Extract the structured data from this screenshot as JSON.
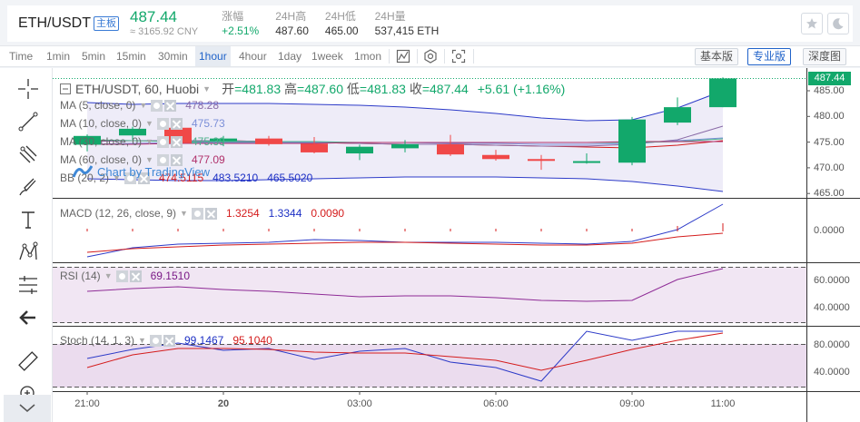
{
  "header": {
    "pair": "ETH/USDT",
    "badge": "主板",
    "price": "487.44",
    "price_cny": "≈ 3165.92 CNY",
    "stats": [
      {
        "label": "涨幅",
        "value": "+2.51%"
      },
      {
        "label": "24H高",
        "value": "487.60"
      },
      {
        "label": "24H低",
        "value": "465.00"
      },
      {
        "label": "24H量",
        "value": "537,415 ETH"
      }
    ],
    "icons": [
      "star-icon",
      "moon-icon"
    ]
  },
  "toolbar": {
    "intervals": [
      "Time",
      "1min",
      "5min",
      "15min",
      "30min",
      "1hour",
      "4hour",
      "1day",
      "1week",
      "1mon"
    ],
    "active_interval": "1hour",
    "icons": [
      "indicator-icon",
      "settings-icon",
      "screenshot-icon"
    ],
    "views": [
      "基本版",
      "专业版",
      "深度图"
    ],
    "active_view": "专业版"
  },
  "tools": [
    "crosshair-icon",
    "trendline-icon",
    "pitchfork-icon",
    "brush-icon",
    "text-icon",
    "pattern-icon",
    "fib-icon",
    "back-arrow-icon",
    "ruler-icon",
    "zoom-in-icon"
  ],
  "main": {
    "title": "ETH/USDT, 60, Huobi",
    "ohlc": {
      "open_label": "开",
      "open": "481.83",
      "high_label": "高",
      "high": "487.60",
      "low_label": "低",
      "low": "481.83",
      "close_label": "收",
      "close": "487.44",
      "change": "+5.61 (+1.16%)"
    },
    "price_tag": "487.44",
    "watermark": "Chart by TradingView",
    "legends": [
      {
        "name": "MA (5, close, 0)",
        "values": [
          "478.28"
        ],
        "color": "#8a6ca8"
      },
      {
        "name": "MA (10, close, 0)",
        "values": [
          "475.73"
        ],
        "color": "#7b8fd8"
      },
      {
        "name": "MA (30, close, 0)",
        "values": [
          "475.39"
        ],
        "color": "#4caf8a"
      },
      {
        "name": "MA (60, close, 0)",
        "values": [
          "477.09"
        ],
        "color": "#b0306a"
      },
      {
        "name": "BB (20, 2)",
        "values": [
          "474.5115",
          "483.5210",
          "465.5020"
        ],
        "colors": [
          "#d41c1c",
          "#1c2fc4",
          "#1c2fc4"
        ]
      }
    ]
  },
  "macd": {
    "name": "MACD (12, 26, close, 9)",
    "values": [
      "1.3254",
      "1.3344",
      "0.0090"
    ],
    "colors": [
      "#d41c1c",
      "#1c2fc4",
      "#d41c1c"
    ]
  },
  "rsi": {
    "name": "RSI (14)",
    "value": "69.1510",
    "color": "#7a1a87"
  },
  "stoch": {
    "name": "Stoch (14, 1, 3)",
    "values": [
      "99.1467",
      "95.1040"
    ],
    "colors": [
      "#1c2fc4",
      "#d41c1c"
    ]
  },
  "colors": {
    "up": "#12a86b",
    "down": "#f04848",
    "accent": "#1f62c9"
  },
  "chart_data": {
    "type": "candlestick",
    "x_labels": [
      "21:00",
      "20",
      "03:00",
      "06:00",
      "09:00",
      "11:00"
    ],
    "y_axis": {
      "main": [
        "485.00",
        "480.00",
        "475.00",
        "470.00",
        "465.00"
      ],
      "macd": [
        "0.0000"
      ],
      "rsi": [
        "60.0000",
        "40.0000"
      ],
      "stoch": [
        "80.0000",
        "40.0000"
      ]
    },
    "candles": [
      {
        "o": 474.5,
        "h": 476.5,
        "l": 473.2,
        "c": 476.2
      },
      {
        "o": 476.3,
        "h": 478.0,
        "l": 475.5,
        "c": 477.6
      },
      {
        "o": 477.8,
        "h": 478.3,
        "l": 474.0,
        "c": 474.8
      },
      {
        "o": 475.2,
        "h": 476.2,
        "l": 474.2,
        "c": 475.7
      },
      {
        "o": 475.7,
        "h": 476.2,
        "l": 474.3,
        "c": 474.6
      },
      {
        "o": 474.7,
        "h": 476.0,
        "l": 472.8,
        "c": 473.0
      },
      {
        "o": 472.8,
        "h": 474.5,
        "l": 471.5,
        "c": 474.1
      },
      {
        "o": 473.8,
        "h": 475.4,
        "l": 473.0,
        "c": 474.6
      },
      {
        "o": 474.6,
        "h": 476.4,
        "l": 472.3,
        "c": 472.6
      },
      {
        "o": 472.5,
        "h": 473.5,
        "l": 471.4,
        "c": 471.7
      },
      {
        "o": 471.7,
        "h": 472.5,
        "l": 469.6,
        "c": 471.4
      },
      {
        "o": 471.1,
        "h": 472.8,
        "l": 470.8,
        "c": 471.3
      },
      {
        "o": 471.0,
        "h": 479.9,
        "l": 470.5,
        "c": 479.4
      },
      {
        "o": 478.8,
        "h": 483.7,
        "l": 478.3,
        "c": 481.8
      },
      {
        "o": 481.8,
        "h": 487.6,
        "l": 481.8,
        "c": 487.4
      }
    ]
  }
}
